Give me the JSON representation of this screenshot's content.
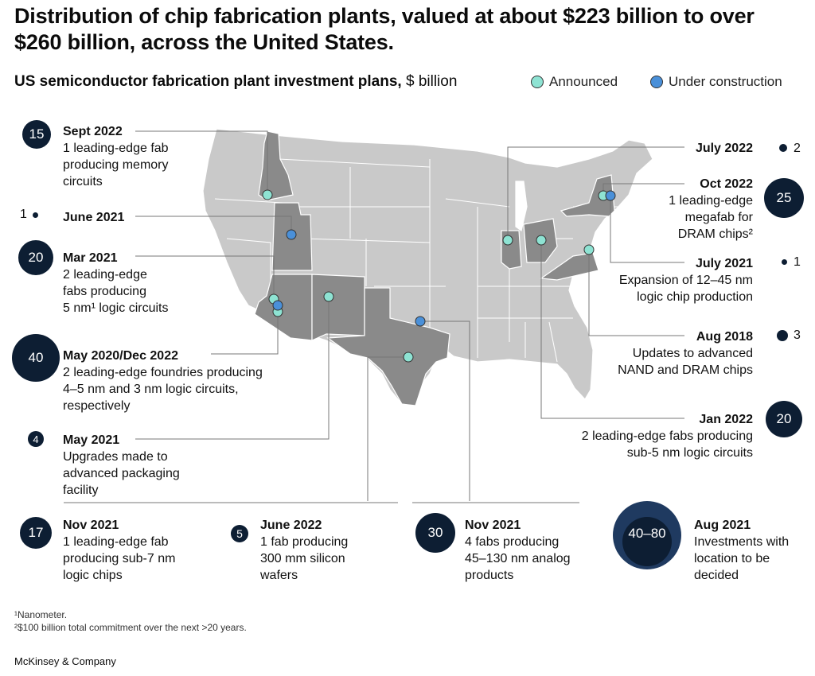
{
  "title": "Distribution of chip fabrication plants, valued at about $223 billion to over $260 billion, across the United States.",
  "subtitle": {
    "bold": "US semiconductor fabrication plant investment plans,",
    "unit": " $ billion"
  },
  "legend": [
    {
      "label": "Announced",
      "color": "#8ee3d3"
    },
    {
      "label": "Under construction",
      "color": "#4a90d9"
    }
  ],
  "colors": {
    "bubble": "#0d1e33",
    "highlight_state": "#8a8a8a",
    "base_state": "#c9c9c9",
    "leader": "#777777"
  },
  "events": {
    "e1": {
      "date": "Sept 2022",
      "lines": [
        "1 leading-edge fab",
        "producing memory",
        "circuits"
      ],
      "value": "15"
    },
    "e2": {
      "date": "June 2021",
      "lines": [],
      "value": "1"
    },
    "e3": {
      "date": "Mar 2021",
      "lines": [
        "2 leading-edge",
        "fabs producing",
        "5 nm¹ logic circuits"
      ],
      "value": "20"
    },
    "e4": {
      "date": "May 2020/Dec 2022",
      "lines": [
        "2 leading-edge foundries producing",
        "4–5 nm and 3 nm logic circuits,",
        "respectively"
      ],
      "value": "40"
    },
    "e5": {
      "date": "May 2021",
      "lines": [
        "Upgrades made to",
        "advanced packaging",
        "facility"
      ],
      "value": "4"
    },
    "e6": {
      "date": "Nov 2021",
      "lines": [
        "1 leading-edge fab",
        "producing sub-7 nm",
        "logic chips"
      ],
      "value": "17"
    },
    "e7": {
      "date": "June 2022",
      "lines": [
        "1 fab producing",
        "300 mm silicon",
        "wafers"
      ],
      "value": "5"
    },
    "e8": {
      "date": "Nov 2021",
      "lines": [
        "4 fabs producing",
        "45–130 nm analog",
        "products"
      ],
      "value": "30"
    },
    "e9": {
      "date": "Aug 2021",
      "lines": [
        "Investments with",
        "location to be",
        "decided"
      ],
      "value": "40–80"
    },
    "e10": {
      "date": "July 2022",
      "lines": [],
      "value": "2"
    },
    "e11": {
      "date": "Oct 2022",
      "lines": [
        "1 leading-edge",
        "megafab for",
        "DRAM chips²"
      ],
      "value": "25"
    },
    "e12": {
      "date": "July 2021",
      "lines": [
        "Expansion of 12–45 nm",
        "logic chip production"
      ],
      "value": "1"
    },
    "e13": {
      "date": "Aug 2018",
      "lines": [
        "Updates to advanced",
        "NAND and DRAM chips"
      ],
      "value": "3"
    },
    "e14": {
      "date": "Jan 2022",
      "lines": [
        "2 leading-edge fabs producing",
        "sub-5 nm logic circuits"
      ],
      "value": "20"
    }
  },
  "footnotes": [
    "¹Nanometer.",
    "²$100 billion total commitment over the next >20 years."
  ],
  "source": "McKinsey & Company"
}
